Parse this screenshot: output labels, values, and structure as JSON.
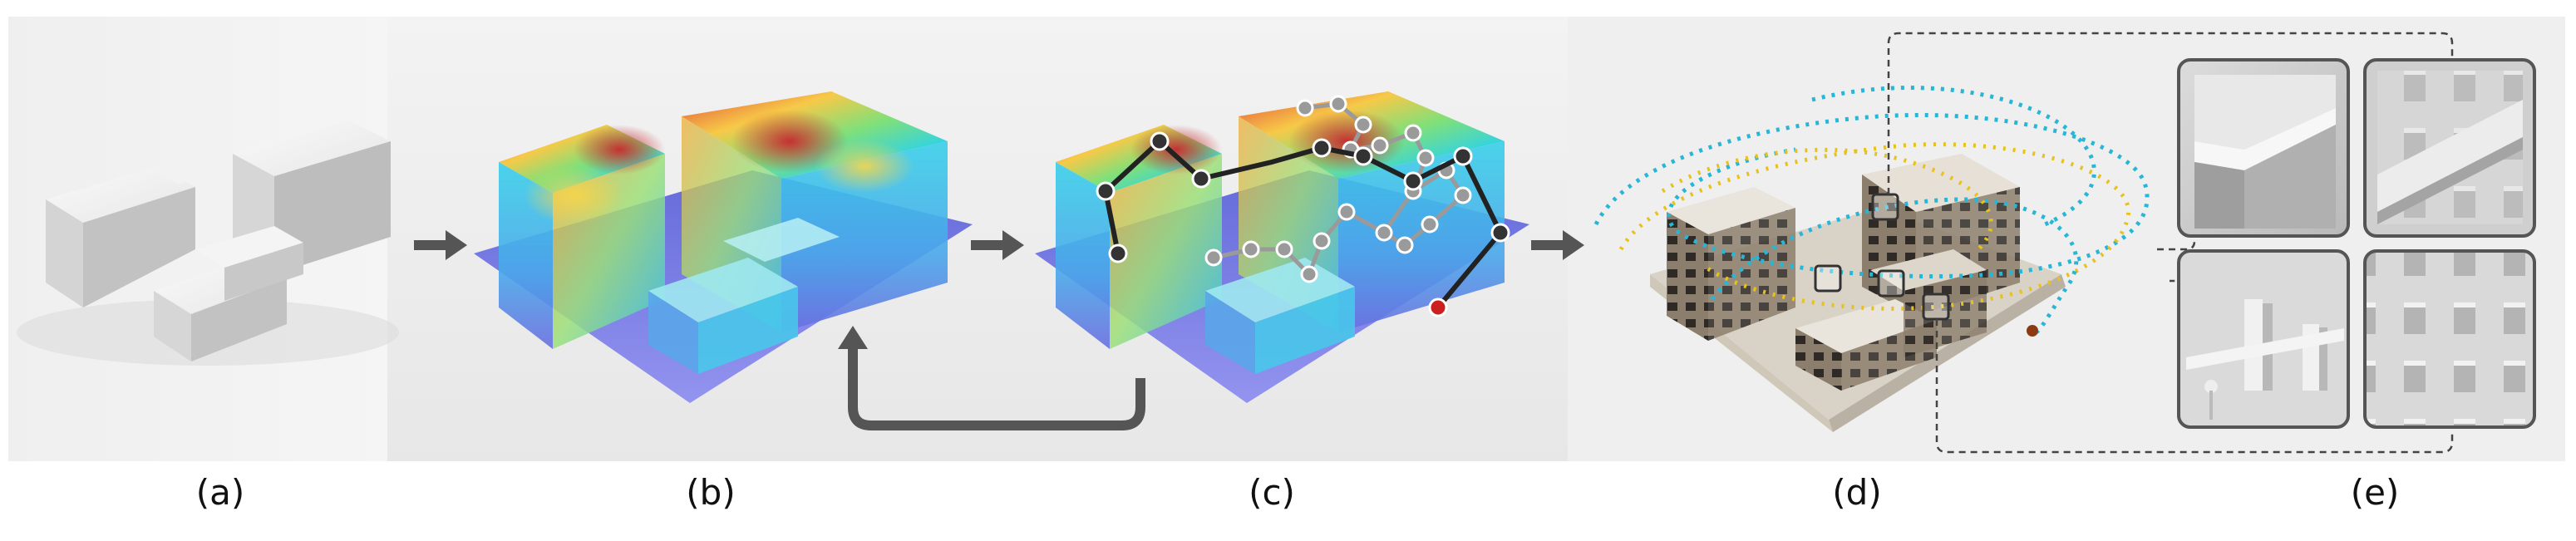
{
  "panels": [
    {
      "id": "a",
      "label": "(a)"
    },
    {
      "id": "b",
      "label": "(b)"
    },
    {
      "id": "c",
      "label": "(c)"
    },
    {
      "id": "d",
      "label": "(d)"
    },
    {
      "id": "e",
      "label": "(e)"
    }
  ],
  "colors": {
    "background_light": "#f4f4f4",
    "background_dark": "#e9e9e9",
    "arrow": "#555555",
    "heat_low": "#5a64dc",
    "heat_mid": "#2fd3e6",
    "heat_high": "#d6403a",
    "path_active": "#222222",
    "path_inactive": "#9a9a9a",
    "path_end": "#cc1f1f",
    "trajectory": "#27b6d6",
    "trajectory_alt": "#e8c21c",
    "leader_line": "#444444"
  }
}
